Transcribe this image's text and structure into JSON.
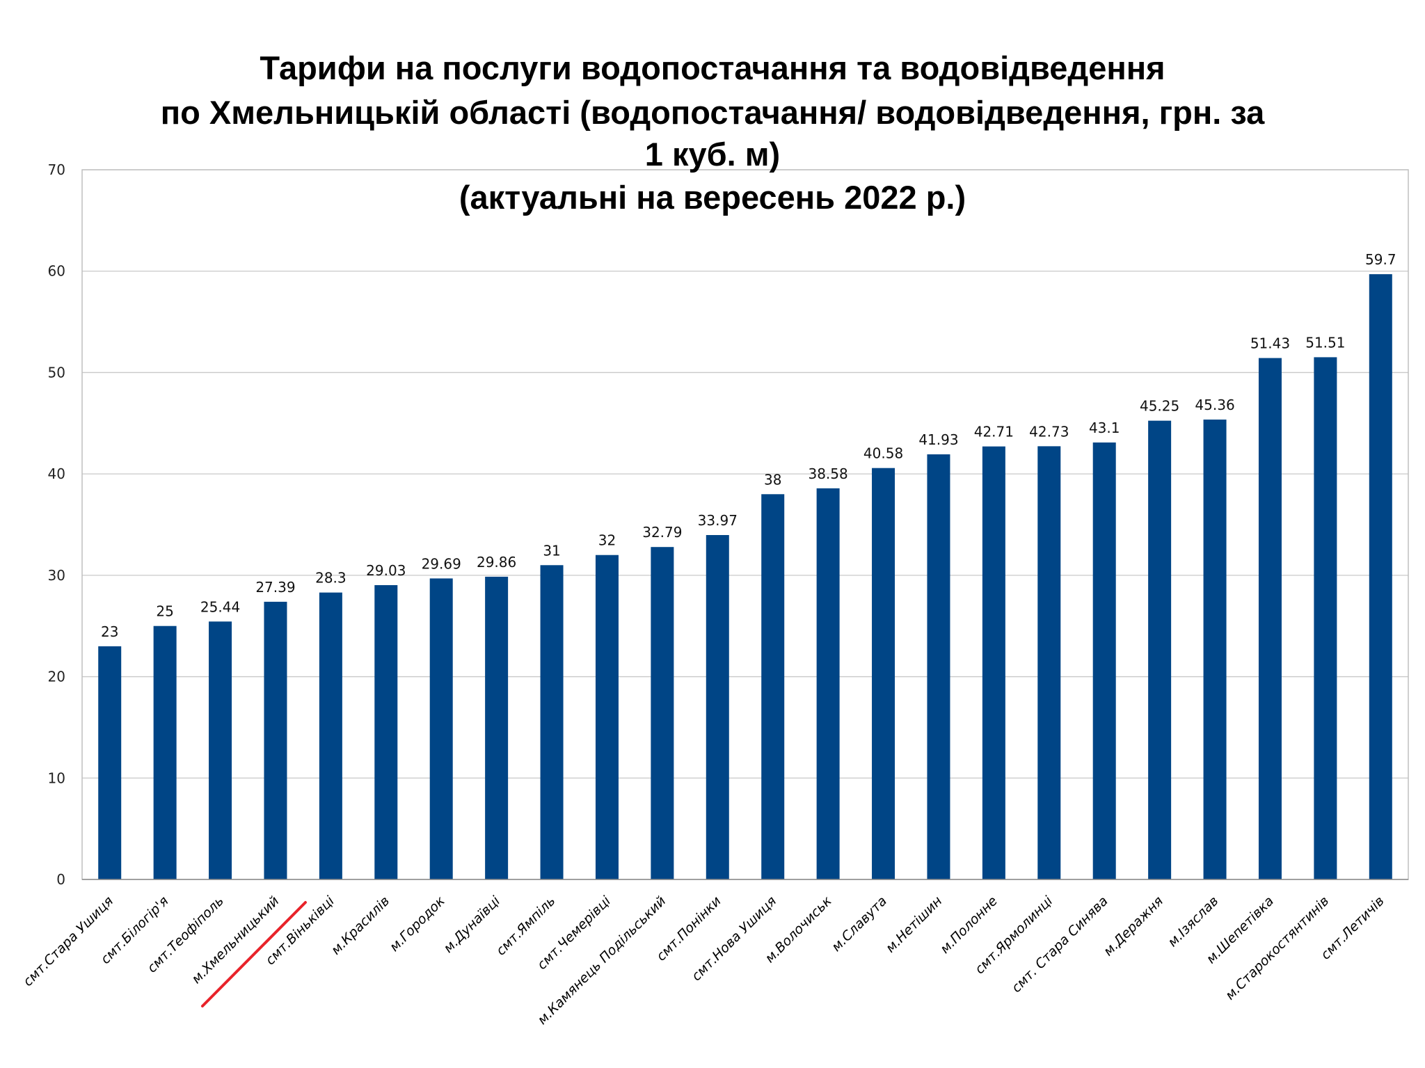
{
  "chart_data": {
    "type": "bar",
    "title": [
      "Тарифи на послуги водопостачання та водовідведення",
      "по Хмельницькій області (водопостачання/ водовідведення, грн. за",
      "1 куб. м)",
      "(актуальні на вересень 2022 р.)"
    ],
    "xlabel": "",
    "ylabel": "",
    "ylim": [
      0,
      70
    ],
    "yticks": [
      0,
      10,
      20,
      30,
      40,
      50,
      60,
      70
    ],
    "grid": true,
    "legend": "none",
    "bar_color": "#004586",
    "highlight_color": "#e8232a",
    "highlighted_category": "м.Хмельницький",
    "categories": [
      "смт.Стара Ушиця",
      "смт.Білогір'я",
      "смт.Теофіполь",
      "м.Хмельницький",
      "смт.Віньківці",
      "м.Красилів",
      "м.Городок",
      "м.Дунаївці",
      "смт.Ямпіль",
      "смт.Чемерівці",
      "м.Камянець Подільський",
      "смт.Понінки",
      "смт.Нова Ушиця",
      "м.Волочиськ",
      "м.Славута",
      "м.Нетішин",
      "м.Полонне",
      "смт.Ярмолинці",
      "смт. Стара Синява",
      "м.Деражня",
      "м.Ізяслав",
      "м.Шепетівка",
      "м.Старокостянтинів",
      "смт.Летичів"
    ],
    "values": [
      23,
      25,
      25.44,
      27.39,
      28.3,
      29.03,
      29.69,
      29.86,
      31,
      32,
      32.79,
      33.97,
      38,
      38.58,
      40.58,
      41.93,
      42.71,
      42.73,
      43.1,
      45.25,
      45.36,
      51.43,
      51.51,
      59.7
    ]
  }
}
